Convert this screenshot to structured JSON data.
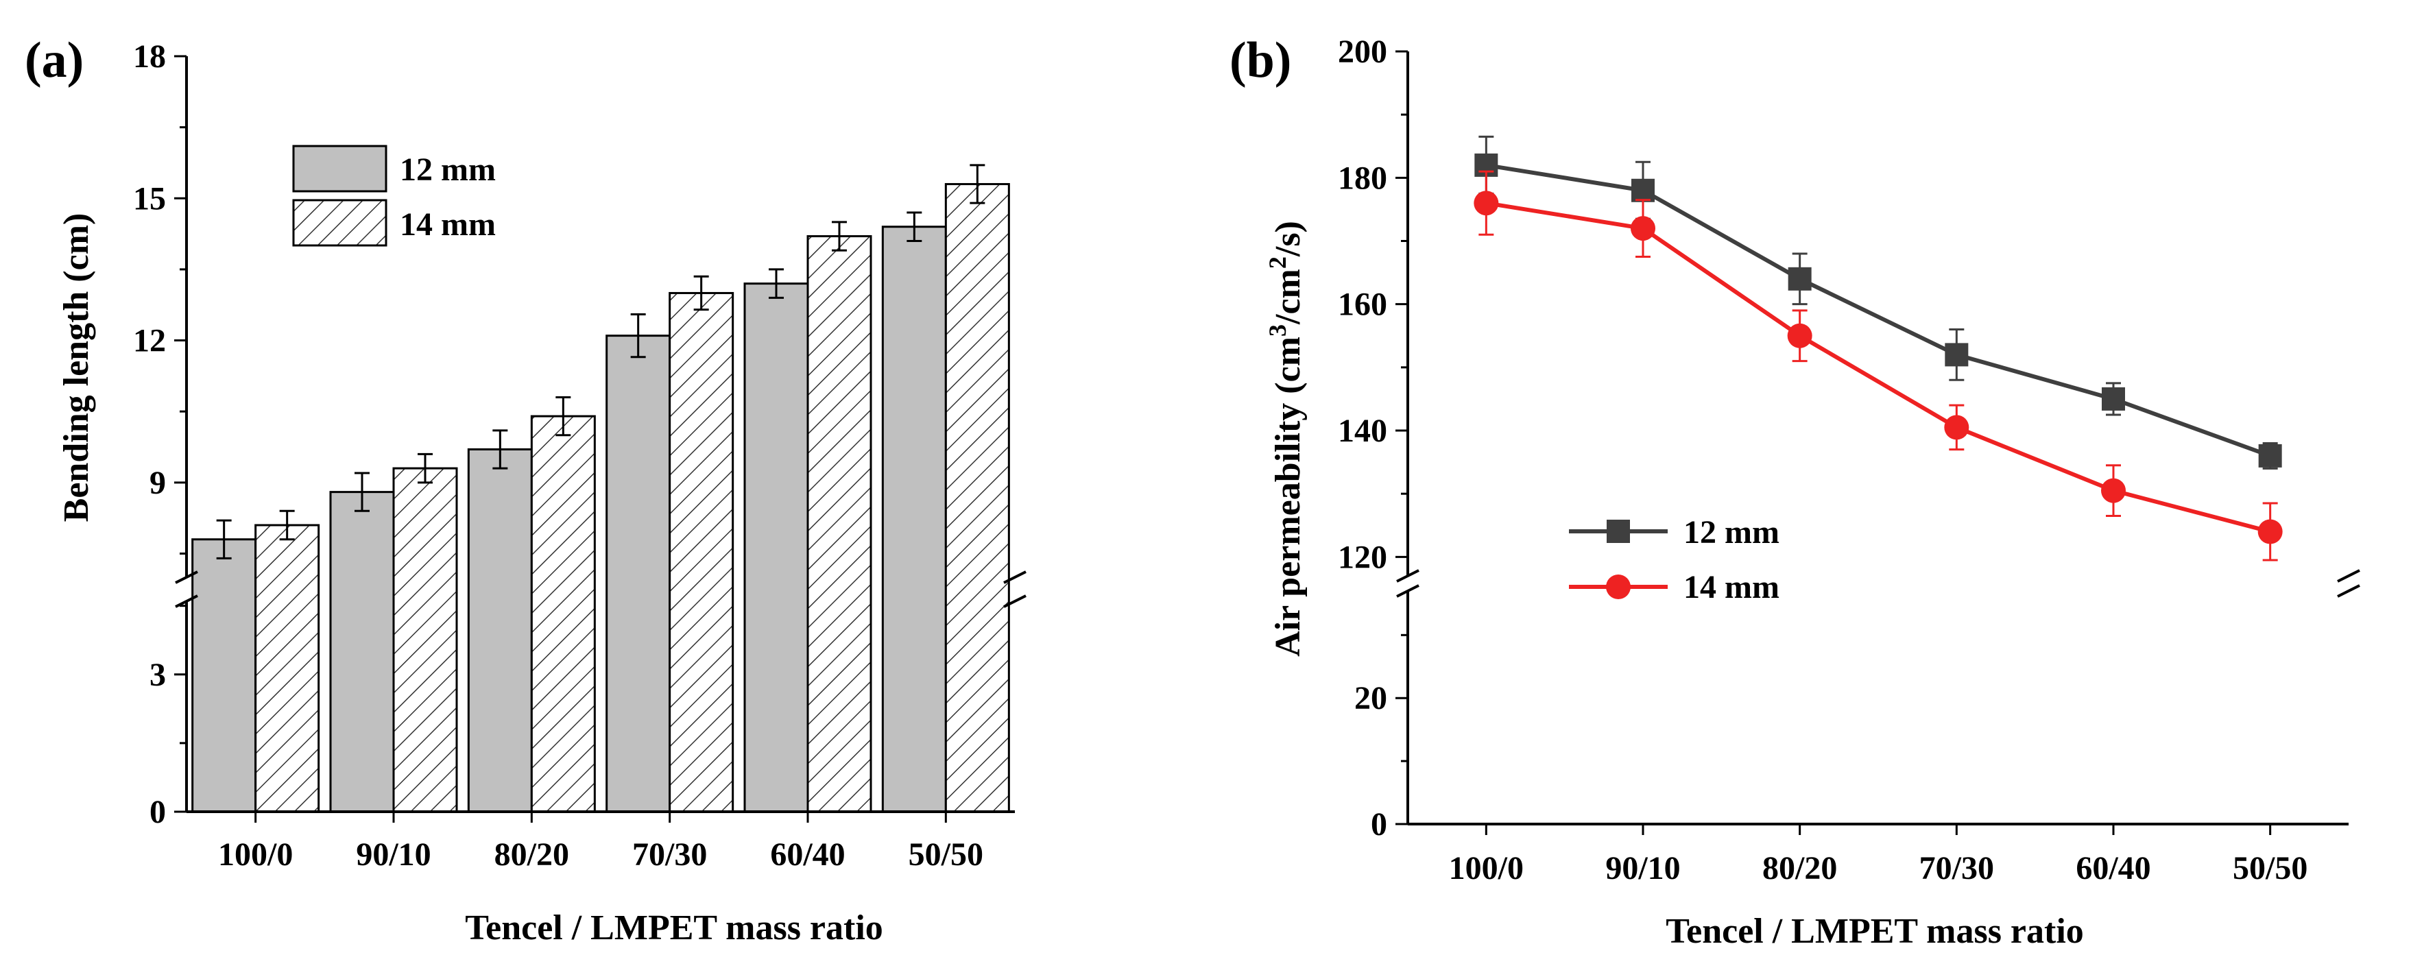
{
  "chart_data": [
    {
      "type": "bar",
      "panel_label": "(a)",
      "categories": [
        "100/0",
        "90/10",
        "80/20",
        "70/30",
        "60/40",
        "50/50"
      ],
      "series": [
        {
          "name": "12 mm",
          "values": [
            7.8,
            8.8,
            9.7,
            12.1,
            13.2,
            14.4
          ],
          "errors": [
            0.4,
            0.4,
            0.4,
            0.45,
            0.3,
            0.3
          ],
          "fill": "#c0c0c0",
          "pattern": "solid"
        },
        {
          "name": "14 mm",
          "values": [
            8.1,
            9.3,
            10.4,
            13.0,
            14.2,
            15.3
          ],
          "errors": [
            0.3,
            0.3,
            0.4,
            0.35,
            0.3,
            0.4
          ],
          "fill": "#ffffff",
          "pattern": "hatched"
        }
      ],
      "xlabel": "Tencel / LMPET mass ratio",
      "ylabel": "Bending length (cm)",
      "axis_break": {
        "lower": [
          0,
          4.6
        ],
        "upper": [
          7.0,
          18
        ]
      },
      "yticks": [
        0,
        3,
        9,
        12,
        15,
        18
      ],
      "ytick_labels": [
        "0",
        "3",
        "9",
        "12",
        "15",
        "18"
      ],
      "legend_position": "top-left"
    },
    {
      "type": "line",
      "panel_label": "(b)",
      "categories": [
        "100/0",
        "90/10",
        "80/20",
        "70/30",
        "60/40",
        "50/50"
      ],
      "series": [
        {
          "name": "12 mm",
          "values": [
            182,
            178,
            164,
            152,
            145,
            136
          ],
          "errors": [
            4.5,
            4.5,
            4,
            4,
            2.5,
            2
          ],
          "color": "#3f3f3f",
          "marker": "square"
        },
        {
          "name": "14 mm",
          "values": [
            176,
            172,
            155,
            140.5,
            130.5,
            124
          ],
          "errors": [
            5,
            4.5,
            4,
            3.5,
            4,
            4.5
          ],
          "color": "#ee2222",
          "marker": "circle"
        }
      ],
      "xlabel": "Tencel / LMPET mass ratio",
      "ylabel_parts": [
        "Air permeability (cm",
        "3",
        "/cm",
        "2",
        "/s)"
      ],
      "axis_break": {
        "lower": [
          0,
          37
        ],
        "upper": [
          117,
          200
        ]
      },
      "yticks": [
        0,
        20,
        120,
        140,
        160,
        180,
        200
      ],
      "ytick_labels": [
        "0",
        "20",
        "120",
        "140",
        "160",
        "180",
        "200"
      ],
      "legend_position": "bottom-left"
    }
  ]
}
